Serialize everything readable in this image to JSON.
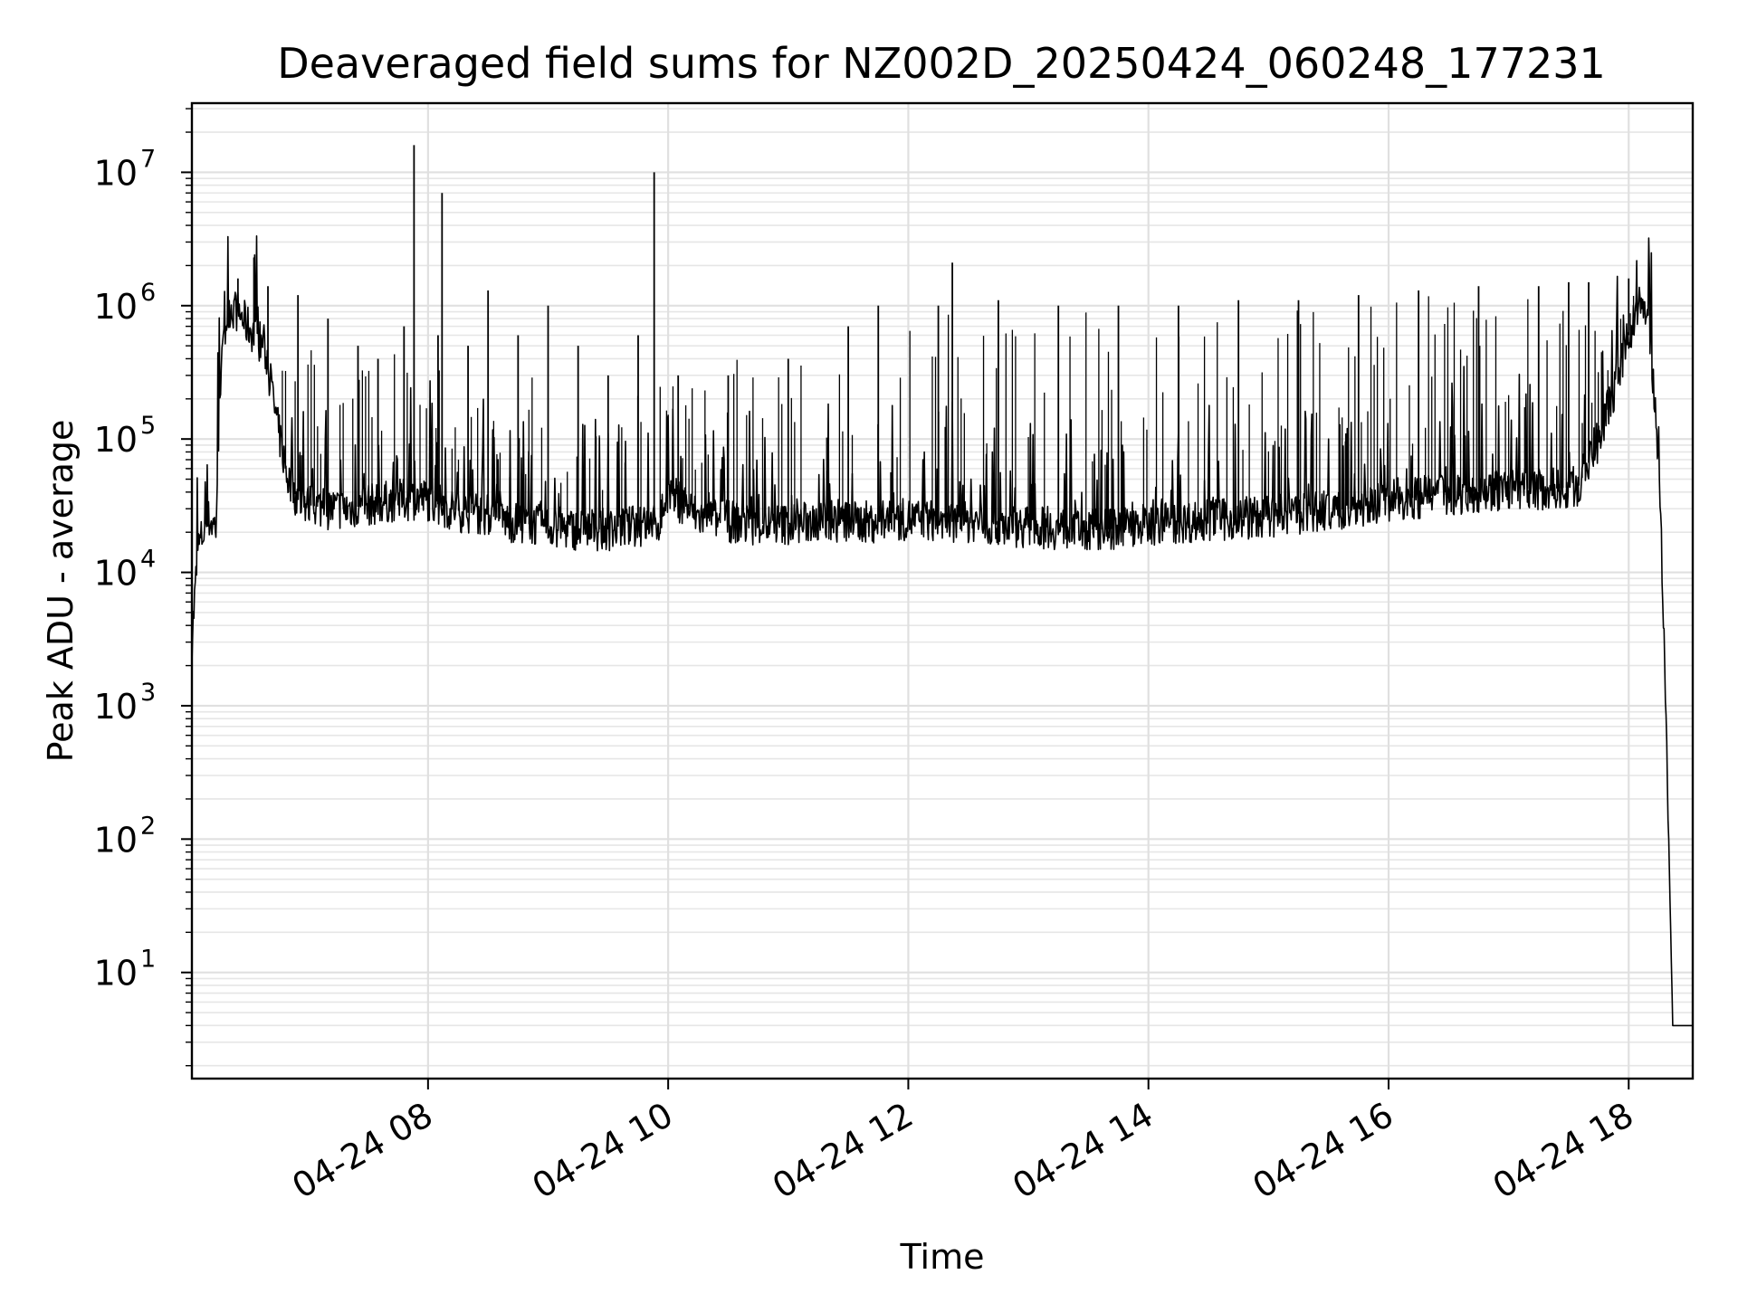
{
  "chart_data": {
    "type": "line",
    "title": "Deaveraged field sums for NZ002D_20250424_060248_177231",
    "xlabel": "Time",
    "ylabel": "Peak ADU - average",
    "yscale": "log",
    "ylim": [
      1.6,
      33000000
    ],
    "xlim": [
      "04-24 06:02",
      "04-24 18:32"
    ],
    "grid": true,
    "x_ticks": [
      {
        "time": "04-24 08:00",
        "label": "04-24 08"
      },
      {
        "time": "04-24 10:00",
        "label": "04-24 10"
      },
      {
        "time": "04-24 12:00",
        "label": "04-24 12"
      },
      {
        "time": "04-24 14:00",
        "label": "04-24 14"
      },
      {
        "time": "04-24 16:00",
        "label": "04-24 16"
      },
      {
        "time": "04-24 18:00",
        "label": "04-24 18"
      }
    ],
    "y_ticks": [
      {
        "value": 10,
        "base": "10",
        "exp": "1"
      },
      {
        "value": 100,
        "base": "10",
        "exp": "2"
      },
      {
        "value": 1000,
        "base": "10",
        "exp": "3"
      },
      {
        "value": 10000,
        "base": "10",
        "exp": "4"
      },
      {
        "value": 100000,
        "base": "10",
        "exp": "5"
      },
      {
        "value": 1000000,
        "base": "10",
        "exp": "6"
      },
      {
        "value": 10000000,
        "base": "10",
        "exp": "7"
      }
    ],
    "series": [
      {
        "color": "#000000",
        "x": [
          "04-24 06:02",
          "04-24 06:05",
          "04-24 06:10",
          "04-24 06:14",
          "04-24 06:16",
          "04-24 06:20",
          "04-24 06:25",
          "04-24 06:30",
          "04-24 06:38",
          "04-24 06:45",
          "04-24 06:50",
          "04-24 06:55",
          "04-24 07:00",
          "04-24 07:10",
          "04-24 07:20",
          "04-24 07:30",
          "04-24 07:40",
          "04-24 07:50",
          "04-24 07:55",
          "04-24 08:00",
          "04-24 08:10",
          "04-24 08:20",
          "04-24 08:30",
          "04-24 08:40",
          "04-24 08:50",
          "04-24 09:00",
          "04-24 09:15",
          "04-24 09:30",
          "04-24 09:45",
          "04-24 09:55",
          "04-24 10:00",
          "04-24 10:15",
          "04-24 10:30",
          "04-24 10:45",
          "04-24 11:00",
          "04-24 11:15",
          "04-24 11:30",
          "04-24 11:45",
          "04-24 12:00",
          "04-24 12:20",
          "04-24 12:40",
          "04-24 13:00",
          "04-24 13:20",
          "04-24 13:40",
          "04-24 14:00",
          "04-24 14:20",
          "04-24 14:40",
          "04-24 15:00",
          "04-24 15:20",
          "04-24 15:40",
          "04-24 16:00",
          "04-24 16:20",
          "04-24 16:40",
          "04-24 17:00",
          "04-24 17:20",
          "04-24 17:35",
          "04-24 17:45",
          "04-24 17:55",
          "04-24 18:00",
          "04-24 18:05",
          "04-24 18:10",
          "04-24 18:13",
          "04-24 18:16",
          "04-24 18:19",
          "04-24 18:22",
          "04-24 18:24",
          "04-24 18:26",
          "04-24 18:28",
          "04-24 18:30",
          "04-24 18:32"
        ],
        "y": [
          3000,
          15000,
          25000,
          22000,
          250000,
          1000000,
          900000,
          700000,
          500000,
          120000,
          50000,
          35000,
          32000,
          30000,
          30000,
          32000,
          34000,
          35000,
          36000,
          35000,
          30000,
          28000,
          27000,
          24000,
          23000,
          22000,
          21000,
          21000,
          22000,
          23000,
          40000,
          26000,
          24000,
          23000,
          23000,
          24000,
          24000,
          24000,
          25000,
          24000,
          23000,
          22000,
          21000,
          21000,
          23000,
          24000,
          25000,
          26000,
          28000,
          30000,
          35000,
          37000,
          40000,
          42000,
          42000,
          44000,
          100000,
          300000,
          600000,
          1000000,
          800000,
          200000,
          25000,
          500,
          4,
          4,
          4,
          4,
          4,
          4
        ]
      }
    ],
    "spikes": [
      {
        "x": "04-24 06:25",
        "y": 1600000
      },
      {
        "x": "04-24 06:33",
        "y": 2300000
      },
      {
        "x": "04-24 06:40",
        "y": 1400000
      },
      {
        "x": "04-24 06:55",
        "y": 1200000
      },
      {
        "x": "04-24 07:10",
        "y": 800000
      },
      {
        "x": "04-24 07:25",
        "y": 500000
      },
      {
        "x": "04-24 07:35",
        "y": 400000
      },
      {
        "x": "04-24 07:48",
        "y": 700000
      },
      {
        "x": "04-24 07:53",
        "y": 16000000
      },
      {
        "x": "04-24 08:05",
        "y": 600000
      },
      {
        "x": "04-24 08:07",
        "y": 7000000
      },
      {
        "x": "04-24 08:20",
        "y": 500000
      },
      {
        "x": "04-24 08:30",
        "y": 1300000
      },
      {
        "x": "04-24 08:45",
        "y": 600000
      },
      {
        "x": "04-24 09:00",
        "y": 1000000
      },
      {
        "x": "04-24 09:15",
        "y": 500000
      },
      {
        "x": "04-24 09:30",
        "y": 300000
      },
      {
        "x": "04-24 09:45",
        "y": 600000
      },
      {
        "x": "04-24 09:53",
        "y": 10000000
      },
      {
        "x": "04-24 10:05",
        "y": 300000
      },
      {
        "x": "04-24 10:30",
        "y": 300000
      },
      {
        "x": "04-24 11:00",
        "y": 400000
      },
      {
        "x": "04-24 11:30",
        "y": 700000
      },
      {
        "x": "04-24 11:45",
        "y": 1000000
      },
      {
        "x": "04-24 12:15",
        "y": 1000000
      },
      {
        "x": "04-24 12:22",
        "y": 2100000
      },
      {
        "x": "04-24 12:45",
        "y": 1100000
      },
      {
        "x": "04-24 13:15",
        "y": 1000000
      },
      {
        "x": "04-24 13:45",
        "y": 1000000
      },
      {
        "x": "04-24 14:15",
        "y": 1000000
      },
      {
        "x": "04-24 14:45",
        "y": 1100000
      },
      {
        "x": "04-24 15:15",
        "y": 1100000
      },
      {
        "x": "04-24 15:45",
        "y": 1200000
      },
      {
        "x": "04-24 16:15",
        "y": 1300000
      },
      {
        "x": "04-24 16:45",
        "y": 1400000
      },
      {
        "x": "04-24 17:15",
        "y": 1400000
      },
      {
        "x": "04-24 17:30",
        "y": 1500000
      },
      {
        "x": "04-24 17:40",
        "y": 1500000
      },
      {
        "x": "04-24 18:00",
        "y": 1600000
      }
    ]
  }
}
